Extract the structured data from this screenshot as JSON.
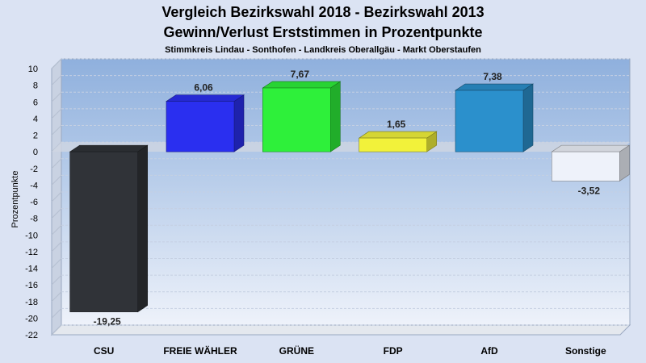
{
  "title": "Vergleich Bezirkswahl 2018 - Bezirkswahl 2013",
  "subtitle": "Gewinn/Verlust Erststimmen in Prozentpunkte",
  "subsubtitle": "Stimmkreis Lindau - Sonthofen - Landkreis Oberallgäu - Markt Oberstaufen",
  "chart_data": {
    "type": "bar",
    "title": "Vergleich Bezirkswahl 2018 - Bezirkswahl 2013",
    "subtitle": "Gewinn/Verlust Erststimmen in Prozentpunkte",
    "xlabel": "",
    "ylabel": "Prozentpunkte",
    "ylim": [
      -22,
      10
    ],
    "yticks": [
      10,
      8,
      6,
      4,
      2,
      0,
      -2,
      -4,
      -6,
      -8,
      -10,
      -12,
      -14,
      -16,
      -18,
      -20,
      -22
    ],
    "grid": true,
    "legend": "none",
    "categories": [
      "CSU",
      "FREIE WÄHLER",
      "GRÜNE",
      "FDP",
      "AfD",
      "Sonstige"
    ],
    "values": [
      -19.25,
      6.06,
      7.67,
      1.65,
      7.38,
      -3.52
    ],
    "value_labels": [
      "-19,25",
      "6,06",
      "7,67",
      "1,65",
      "7,38",
      "-3,52"
    ],
    "colors": [
      "#303338",
      "#2a2ff0",
      "#2ef03a",
      "#f2f23a",
      "#2b90cc",
      "#eef2fa"
    ]
  }
}
